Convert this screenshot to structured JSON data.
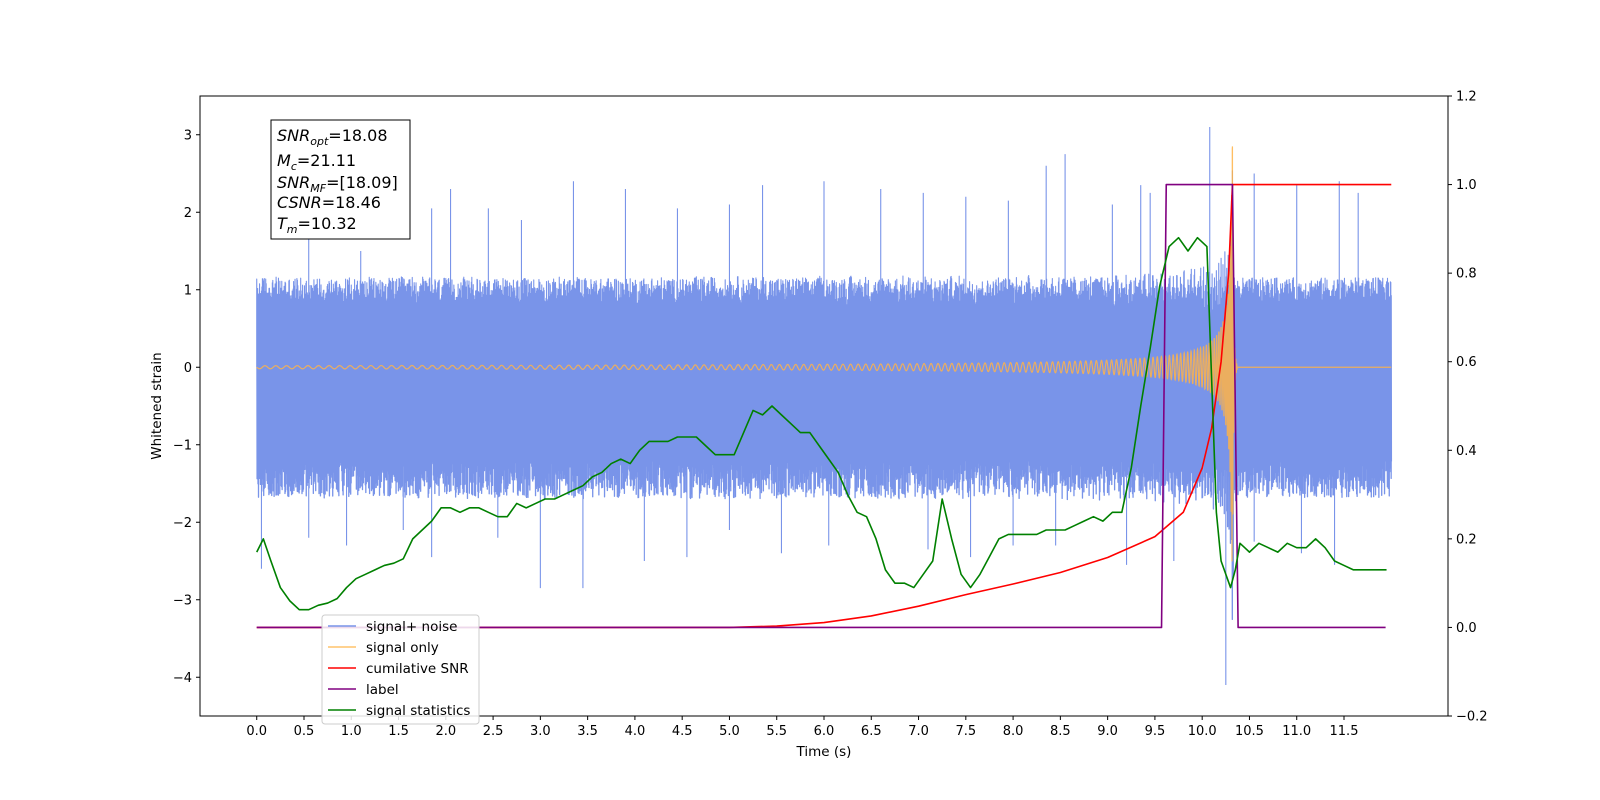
{
  "chart_data": {
    "type": "line",
    "xlabel": "Time (s)",
    "ylabel": "Whitened strain",
    "xlim": [
      -0.6,
      12.6
    ],
    "ylim": [
      -4.5,
      3.5
    ],
    "y2lim": [
      -0.2,
      1.2
    ],
    "xticks": [
      "0.0",
      "0.5",
      "1.0",
      "1.5",
      "2.0",
      "2.5",
      "3.0",
      "3.5",
      "4.0",
      "4.5",
      "5.0",
      "5.5",
      "6.0",
      "6.5",
      "7.0",
      "7.5",
      "8.0",
      "8.5",
      "9.0",
      "9.5",
      "10.0",
      "10.5",
      "11.0",
      "11.5"
    ],
    "yticks": [
      "3",
      "2",
      "1",
      "0",
      "−1",
      "−2",
      "−3",
      "−4"
    ],
    "y2ticks": [
      "1.2",
      "1.0",
      "0.8",
      "0.6",
      "0.4",
      "0.2",
      "0.0",
      "−0.2"
    ],
    "annotation": [
      {
        "sym": "SNR",
        "sub": "opt",
        "val": "=18.08"
      },
      {
        "sym": "M",
        "sub": "c",
        "val": "=21.11"
      },
      {
        "sym": "SNR",
        "sub": "MF",
        "val": "=[18.09]"
      },
      {
        "sym": "CSNR",
        "sub": "",
        "val": "=18.46"
      },
      {
        "sym": "T",
        "sub": "m",
        "val": "=10.32"
      }
    ],
    "legend_position": "lower-left",
    "series": [
      {
        "name": "signal+ noise",
        "color": "#7994e9",
        "axis": "left",
        "x_range": [
          0.0,
          12.0
        ],
        "typical_upper": 1.1,
        "typical_lower": -1.6,
        "upper_spikes": [
          [
            0.08,
            1.15
          ],
          [
            0.55,
            1.7
          ],
          [
            1.1,
            1.5
          ],
          [
            1.85,
            2.05
          ],
          [
            2.05,
            2.3
          ],
          [
            2.45,
            2.05
          ],
          [
            2.8,
            1.9
          ],
          [
            3.35,
            2.4
          ],
          [
            3.9,
            2.3
          ],
          [
            4.45,
            2.05
          ],
          [
            5.0,
            2.1
          ],
          [
            5.35,
            2.35
          ],
          [
            6.0,
            2.4
          ],
          [
            6.6,
            2.3
          ],
          [
            7.05,
            2.25
          ],
          [
            7.5,
            2.2
          ],
          [
            7.95,
            2.15
          ],
          [
            8.35,
            2.6
          ],
          [
            8.55,
            2.75
          ],
          [
            9.05,
            2.1
          ],
          [
            9.35,
            2.35
          ],
          [
            9.45,
            2.25
          ],
          [
            10.08,
            3.1
          ],
          [
            10.55,
            2.5
          ],
          [
            11.0,
            2.35
          ],
          [
            11.45,
            2.4
          ],
          [
            11.65,
            2.25
          ]
        ],
        "lower_spikes": [
          [
            0.05,
            -2.6
          ],
          [
            0.55,
            -2.2
          ],
          [
            0.95,
            -2.3
          ],
          [
            1.55,
            -2.1
          ],
          [
            1.85,
            -2.45
          ],
          [
            2.55,
            -2.2
          ],
          [
            3.0,
            -2.85
          ],
          [
            3.45,
            -2.85
          ],
          [
            4.1,
            -2.5
          ],
          [
            4.55,
            -2.45
          ],
          [
            5.0,
            -2.1
          ],
          [
            5.55,
            -2.4
          ],
          [
            6.05,
            -2.3
          ],
          [
            7.1,
            -2.35
          ],
          [
            7.55,
            -2.45
          ],
          [
            8.0,
            -2.3
          ],
          [
            8.45,
            -2.3
          ],
          [
            9.2,
            -2.55
          ],
          [
            9.7,
            -2.5
          ],
          [
            10.25,
            -4.1
          ],
          [
            10.55,
            -2.25
          ],
          [
            11.05,
            -2.4
          ],
          [
            11.4,
            -2.55
          ]
        ]
      },
      {
        "name": "signal only",
        "color": "#ffb347",
        "axis": "left",
        "merger_time": 10.32,
        "peak_amplitude": 2.85
      },
      {
        "name": "cumilative SNR",
        "color": "#ff0000",
        "axis": "right",
        "x": [
          0.0,
          5.0,
          5.5,
          6.0,
          6.5,
          7.0,
          7.5,
          8.0,
          8.5,
          9.0,
          9.5,
          9.8,
          10.0,
          10.1,
          10.2,
          10.28,
          10.32,
          12.0
        ],
        "y": [
          0.0,
          0.0,
          0.003,
          0.011,
          0.026,
          0.048,
          0.074,
          0.098,
          0.124,
          0.158,
          0.205,
          0.26,
          0.36,
          0.45,
          0.6,
          0.8,
          1.0,
          1.0
        ]
      },
      {
        "name": "label",
        "color": "#800080",
        "axis": "right",
        "x": [
          0.0,
          9.57,
          9.62,
          10.32,
          10.38,
          11.94
        ],
        "y": [
          0.0,
          0.0,
          1.0,
          1.0,
          0.0,
          0.0
        ]
      },
      {
        "name": "signal statistics",
        "color": "#008000",
        "axis": "right",
        "x": [
          0.0,
          0.07,
          0.15,
          0.25,
          0.35,
          0.45,
          0.55,
          0.65,
          0.75,
          0.85,
          0.95,
          1.05,
          1.15,
          1.25,
          1.35,
          1.45,
          1.55,
          1.65,
          1.75,
          1.85,
          1.95,
          2.05,
          2.15,
          2.25,
          2.35,
          2.45,
          2.55,
          2.65,
          2.75,
          2.85,
          2.95,
          3.05,
          3.15,
          3.25,
          3.35,
          3.45,
          3.55,
          3.65,
          3.75,
          3.85,
          3.95,
          4.05,
          4.15,
          4.25,
          4.35,
          4.45,
          4.55,
          4.65,
          4.75,
          4.85,
          4.95,
          5.05,
          5.15,
          5.25,
          5.35,
          5.45,
          5.55,
          5.65,
          5.75,
          5.85,
          5.95,
          6.05,
          6.15,
          6.25,
          6.35,
          6.45,
          6.55,
          6.65,
          6.75,
          6.85,
          6.95,
          7.05,
          7.15,
          7.25,
          7.35,
          7.45,
          7.55,
          7.65,
          7.75,
          7.85,
          7.95,
          8.05,
          8.15,
          8.25,
          8.35,
          8.45,
          8.55,
          8.65,
          8.75,
          8.85,
          8.95,
          9.05,
          9.15,
          9.25,
          9.35,
          9.45,
          9.55,
          9.65,
          9.75,
          9.85,
          9.95,
          10.05,
          10.15,
          10.2,
          10.3,
          10.35,
          10.4,
          10.45,
          10.5,
          10.6,
          10.7,
          10.8,
          10.9,
          11.0,
          11.1,
          11.2,
          11.3,
          11.4,
          11.5,
          11.6,
          11.7,
          11.8,
          11.9,
          11.95
        ],
        "y": [
          0.17,
          0.2,
          0.15,
          0.09,
          0.06,
          0.04,
          0.04,
          0.05,
          0.055,
          0.065,
          0.09,
          0.11,
          0.12,
          0.13,
          0.14,
          0.145,
          0.155,
          0.2,
          0.22,
          0.24,
          0.27,
          0.27,
          0.26,
          0.27,
          0.27,
          0.26,
          0.25,
          0.25,
          0.28,
          0.27,
          0.28,
          0.29,
          0.29,
          0.3,
          0.31,
          0.32,
          0.34,
          0.35,
          0.37,
          0.38,
          0.37,
          0.4,
          0.42,
          0.42,
          0.42,
          0.43,
          0.43,
          0.43,
          0.41,
          0.39,
          0.39,
          0.39,
          0.44,
          0.49,
          0.48,
          0.5,
          0.48,
          0.46,
          0.44,
          0.44,
          0.41,
          0.38,
          0.35,
          0.3,
          0.26,
          0.25,
          0.2,
          0.13,
          0.1,
          0.1,
          0.09,
          0.12,
          0.15,
          0.29,
          0.2,
          0.12,
          0.09,
          0.12,
          0.16,
          0.2,
          0.21,
          0.21,
          0.21,
          0.21,
          0.22,
          0.22,
          0.22,
          0.23,
          0.24,
          0.25,
          0.24,
          0.26,
          0.26,
          0.36,
          0.5,
          0.63,
          0.77,
          0.86,
          0.88,
          0.85,
          0.88,
          0.86,
          0.26,
          0.15,
          0.09,
          0.13,
          0.19,
          0.18,
          0.17,
          0.19,
          0.18,
          0.17,
          0.19,
          0.18,
          0.18,
          0.2,
          0.18,
          0.15,
          0.14,
          0.13,
          0.13,
          0.13,
          0.13,
          0.13
        ]
      }
    ]
  }
}
